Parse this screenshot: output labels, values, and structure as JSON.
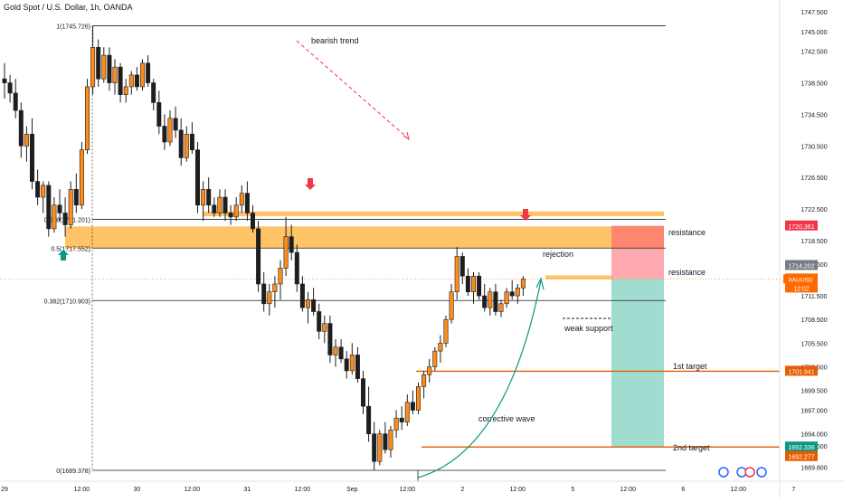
{
  "header": {
    "symbol_title": "Gold Spot / U.S. Dollar, 1h, OANDA"
  },
  "colors": {
    "up": "#ff8c1a",
    "down": "#1e1e1e",
    "zone": "#ffb84d",
    "target_line": "#e65c00",
    "sl_box": "#ff9aa2",
    "sl_box_top": "#ff7b5c",
    "tp_box": "#8fd6c8",
    "arrow_down": "#f23645",
    "arrow_up": "#089981",
    "trend": "#f23645",
    "curve": "#089981"
  },
  "chart_data": {
    "type": "candlestick",
    "symbol": "XAUUSD",
    "timeframe": "1h",
    "ylim": [
      1688.0,
      1749.0
    ],
    "price_ticks": [
      1747.5,
      1745.0,
      1742.5,
      1738.5,
      1734.5,
      1730.5,
      1726.5,
      1722.5,
      1718.5,
      1715.5,
      1711.5,
      1708.5,
      1705.5,
      1702.5,
      1699.5,
      1697.0,
      1694.0,
      1692.5,
      1689.8
    ],
    "price_tick_labels": [
      "1747.500",
      "1745.000",
      "1742.500",
      "1738.500",
      "1734.500",
      "1730.500",
      "1726.500",
      "1722.500",
      "1718.500",
      "1715.500",
      "1711.500",
      "1708.500",
      "1705.500",
      "1702.500",
      "1699.500",
      "1697.000",
      "1694.000",
      "1692.500",
      "1689.800"
    ],
    "time_labels": [
      "29",
      "12:00",
      "30",
      "12:00",
      "31",
      "12:00",
      "Sep",
      "12:00",
      "2",
      "12:00",
      "5",
      "12:00",
      "6",
      "12:00",
      "7"
    ],
    "time_label_bars": [
      0,
      14,
      24,
      34,
      44,
      54,
      63,
      73,
      83,
      93,
      103,
      113,
      123,
      133,
      143
    ],
    "fib_levels": [
      {
        "label": "1(1745.726)",
        "price": 1745.726
      },
      {
        "label": "0.618(1721.201)",
        "price": 1721.201
      },
      {
        "label": "0.5(1717.552)",
        "price": 1717.552
      },
      {
        "label": "0.382(1710.903)",
        "price": 1710.903
      },
      {
        "label": "0(1689.378)",
        "price": 1689.378
      }
    ],
    "zones": [
      {
        "price_top": 1720.3,
        "price_bottom": 1717.5
      },
      {
        "price_top": 1722.2,
        "price_bottom": 1721.6
      },
      {
        "price_top": 1714.1,
        "price_bottom": 1713.6
      }
    ],
    "position": {
      "entry": 1713.64,
      "stop_loss": 1720.361,
      "sl_top": 1720.361,
      "target_1": 1701.941,
      "target_2": 1692.336
    },
    "annotations": {
      "bearish_trend": "bearish trend",
      "resistance_1": "resistance",
      "resistance_2": "resistance",
      "rejection": "rejection",
      "weak_support": "weak support",
      "corrective_wave": "corrective wave",
      "target_1": "1st target",
      "target_2": "2nd target"
    },
    "price_tags": [
      {
        "label": "1720.361",
        "price": 1720.361,
        "color": "#f23645"
      },
      {
        "label": "1714.202",
        "price": 1714.202,
        "color": "#787b86"
      },
      {
        "label": "1713.640",
        "price": 1713.64,
        "color": "#ff6a00"
      },
      {
        "label": "12:02",
        "price": 1713.64,
        "color": "#ff6a00",
        "sub": true
      },
      {
        "label": "1701.941",
        "price": 1701.941,
        "color": "#e65c00"
      },
      {
        "label": "1692.336",
        "price": 1692.336,
        "color": "#089981"
      },
      {
        "label": "1692.277",
        "price": 1692.277,
        "color": "#e65c00"
      }
    ],
    "symbol_tag": "XAUUSD",
    "candles": [
      [
        1739.0,
        1741.0,
        1736.5,
        1738.5
      ],
      [
        1738.5,
        1739.5,
        1736.0,
        1737.2
      ],
      [
        1737.2,
        1739.0,
        1734.0,
        1735.0
      ],
      [
        1735.0,
        1736.0,
        1729.0,
        1730.5
      ],
      [
        1730.5,
        1733.0,
        1728.5,
        1732.0
      ],
      [
        1732.0,
        1734.0,
        1725.0,
        1726.0
      ],
      [
        1726.0,
        1727.5,
        1723.0,
        1724.0
      ],
      [
        1724.0,
        1726.0,
        1722.0,
        1725.5
      ],
      [
        1725.5,
        1726.0,
        1719.0,
        1720.0
      ],
      [
        1720.0,
        1724.0,
        1719.5,
        1723.0
      ],
      [
        1723.0,
        1725.0,
        1721.0,
        1722.0
      ],
      [
        1722.0,
        1724.0,
        1719.0,
        1720.5
      ],
      [
        1720.5,
        1726.0,
        1720.0,
        1725.0
      ],
      [
        1725.0,
        1727.0,
        1722.0,
        1723.0
      ],
      [
        1723.0,
        1731.0,
        1722.5,
        1730.0
      ],
      [
        1730.0,
        1739.0,
        1729.5,
        1738.0
      ],
      [
        1738.0,
        1745.7,
        1737.0,
        1743.0
      ],
      [
        1743.0,
        1744.0,
        1738.0,
        1739.0
      ],
      [
        1739.0,
        1743.0,
        1738.5,
        1742.0
      ],
      [
        1742.0,
        1743.0,
        1737.5,
        1738.5
      ],
      [
        1738.5,
        1741.5,
        1737.0,
        1740.5
      ],
      [
        1740.5,
        1741.0,
        1736.0,
        1737.0
      ],
      [
        1737.0,
        1739.0,
        1736.0,
        1738.0
      ],
      [
        1738.0,
        1740.0,
        1737.0,
        1739.5
      ],
      [
        1739.5,
        1740.5,
        1737.5,
        1738.0
      ],
      [
        1738.0,
        1741.5,
        1737.5,
        1741.0
      ],
      [
        1741.0,
        1742.0,
        1738.0,
        1738.5
      ],
      [
        1738.5,
        1739.0,
        1735.0,
        1736.0
      ],
      [
        1736.0,
        1737.5,
        1732.0,
        1733.0
      ],
      [
        1733.0,
        1734.5,
        1730.0,
        1731.0
      ],
      [
        1731.0,
        1735.0,
        1730.5,
        1734.0
      ],
      [
        1734.0,
        1735.5,
        1731.5,
        1732.5
      ],
      [
        1732.5,
        1734.0,
        1728.0,
        1729.0
      ],
      [
        1729.0,
        1733.0,
        1728.5,
        1732.0
      ],
      [
        1732.0,
        1733.5,
        1729.5,
        1730.0
      ],
      [
        1730.0,
        1731.0,
        1722.0,
        1723.0
      ],
      [
        1723.0,
        1726.0,
        1721.0,
        1725.0
      ],
      [
        1725.0,
        1726.5,
        1722.0,
        1723.0
      ],
      [
        1723.0,
        1724.0,
        1721.5,
        1722.0
      ],
      [
        1722.0,
        1725.0,
        1721.5,
        1724.0
      ],
      [
        1724.0,
        1725.0,
        1721.0,
        1722.0
      ],
      [
        1722.0,
        1723.0,
        1720.5,
        1721.5
      ],
      [
        1721.5,
        1724.0,
        1721.0,
        1723.0
      ],
      [
        1723.0,
        1725.5,
        1722.0,
        1724.5
      ],
      [
        1724.5,
        1726.0,
        1721.0,
        1722.0
      ],
      [
        1722.0,
        1723.0,
        1719.5,
        1720.0
      ],
      [
        1720.0,
        1721.0,
        1712.0,
        1713.0
      ],
      [
        1713.0,
        1714.5,
        1709.5,
        1710.5
      ],
      [
        1710.5,
        1713.0,
        1709.0,
        1712.0
      ],
      [
        1712.0,
        1714.0,
        1710.0,
        1713.0
      ],
      [
        1713.0,
        1716.0,
        1711.0,
        1715.0
      ],
      [
        1715.0,
        1721.5,
        1714.0,
        1719.0
      ],
      [
        1719.0,
        1720.5,
        1716.0,
        1717.0
      ],
      [
        1717.0,
        1718.0,
        1712.0,
        1713.0
      ],
      [
        1713.0,
        1714.0,
        1709.5,
        1710.0
      ],
      [
        1710.0,
        1712.0,
        1708.0,
        1711.0
      ],
      [
        1711.0,
        1712.5,
        1709.0,
        1709.5
      ],
      [
        1709.5,
        1710.5,
        1706.0,
        1707.0
      ],
      [
        1707.0,
        1709.0,
        1705.5,
        1708.0
      ],
      [
        1708.0,
        1709.0,
        1703.0,
        1704.0
      ],
      [
        1704.0,
        1706.0,
        1702.5,
        1705.0
      ],
      [
        1705.0,
        1706.0,
        1703.0,
        1703.5
      ],
      [
        1703.5,
        1704.5,
        1701.0,
        1702.0
      ],
      [
        1702.0,
        1705.5,
        1701.5,
        1704.0
      ],
      [
        1704.0,
        1705.0,
        1700.5,
        1701.0
      ],
      [
        1701.0,
        1702.0,
        1696.5,
        1697.5
      ],
      [
        1697.5,
        1700.0,
        1693.0,
        1694.0
      ],
      [
        1694.0,
        1695.5,
        1689.4,
        1690.5
      ],
      [
        1690.5,
        1694.5,
        1690.0,
        1694.0
      ],
      [
        1694.0,
        1695.5,
        1691.5,
        1692.0
      ],
      [
        1692.0,
        1695.0,
        1691.0,
        1694.5
      ],
      [
        1694.5,
        1697.0,
        1693.5,
        1696.0
      ],
      [
        1696.0,
        1697.5,
        1694.5,
        1695.5
      ],
      [
        1695.5,
        1699.0,
        1695.0,
        1698.0
      ],
      [
        1698.0,
        1699.5,
        1696.5,
        1697.0
      ],
      [
        1697.0,
        1700.5,
        1696.5,
        1700.0
      ],
      [
        1700.0,
        1702.0,
        1698.5,
        1701.5
      ],
      [
        1701.5,
        1703.5,
        1700.5,
        1702.5
      ],
      [
        1702.5,
        1705.0,
        1702.0,
        1704.5
      ],
      [
        1704.5,
        1706.5,
        1703.0,
        1705.5
      ],
      [
        1705.5,
        1709.0,
        1705.0,
        1708.5
      ],
      [
        1708.5,
        1713.0,
        1708.0,
        1712.0
      ],
      [
        1712.0,
        1717.7,
        1711.0,
        1716.5
      ],
      [
        1716.5,
        1717.0,
        1713.0,
        1714.0
      ],
      [
        1714.0,
        1715.0,
        1711.5,
        1712.0
      ],
      [
        1712.0,
        1714.5,
        1710.5,
        1714.0
      ],
      [
        1714.0,
        1714.5,
        1711.0,
        1711.5
      ],
      [
        1711.5,
        1713.0,
        1709.5,
        1710.0
      ],
      [
        1710.0,
        1712.5,
        1709.0,
        1712.0
      ],
      [
        1712.0,
        1713.0,
        1709.0,
        1709.5
      ],
      [
        1709.5,
        1711.0,
        1708.8,
        1710.5
      ],
      [
        1710.5,
        1712.5,
        1710.0,
        1712.0
      ],
      [
        1712.0,
        1713.5,
        1711.0,
        1711.5
      ],
      [
        1711.5,
        1713.0,
        1710.5,
        1712.5
      ],
      [
        1712.5,
        1714.0,
        1711.5,
        1713.64
      ]
    ],
    "candle_bars": [
      0,
      1,
      2,
      3,
      4,
      5,
      6,
      7,
      8,
      9,
      10,
      11,
      12,
      13,
      14,
      15,
      16,
      17,
      18,
      19,
      20,
      21,
      22,
      23,
      24,
      25,
      26,
      27,
      28,
      29,
      30,
      31,
      32,
      33,
      34,
      35,
      36,
      37,
      38,
      39,
      40,
      41,
      42,
      43,
      44,
      45,
      46,
      47,
      48,
      49,
      50,
      51,
      52,
      53,
      54,
      55,
      56,
      57,
      58,
      59,
      60,
      61,
      62,
      63,
      64,
      65,
      66,
      67,
      68,
      69,
      70,
      71,
      72,
      73,
      74,
      75,
      76,
      77,
      78,
      79,
      80,
      81,
      82,
      83,
      84,
      85,
      86,
      87,
      88,
      89,
      90,
      91,
      92,
      93,
      94
    ]
  }
}
